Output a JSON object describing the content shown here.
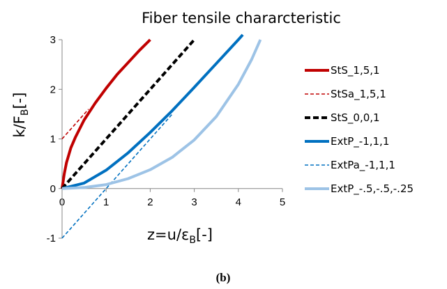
{
  "chart_data": {
    "type": "line",
    "title": "Fiber tensile chararcteristic",
    "xlabel": {
      "main": "z=u/",
      "symbol": "ε",
      "sub": "B",
      "tail": "[-]"
    },
    "ylabel": {
      "main": "k/F",
      "sub": "B",
      "tail": "[-]"
    },
    "xlim": [
      0,
      5
    ],
    "ylim": [
      -1,
      3
    ],
    "xticks": [
      0,
      1,
      2,
      3,
      4,
      5
    ],
    "yticks": [
      -1,
      0,
      1,
      2,
      3
    ],
    "grid": false,
    "legend_position": "right",
    "series": [
      {
        "name": "StS_1,5,1",
        "color": "#c00000",
        "style": "solid",
        "width": "thick",
        "x": [
          0,
          0.05,
          0.1,
          0.2,
          0.3,
          0.5,
          0.75,
          1.0,
          1.25,
          1.5,
          1.75,
          2.0
        ],
        "y": [
          0,
          0.3,
          0.52,
          0.82,
          1.03,
          1.38,
          1.72,
          2.02,
          2.3,
          2.54,
          2.78,
          3.0
        ]
      },
      {
        "name": "StSa_1,5,1",
        "color": "#c00000",
        "style": "dashed",
        "width": "thin",
        "x": [
          0,
          0.6
        ],
        "y": [
          1.0,
          1.6
        ]
      },
      {
        "name": "StS_0,0,1",
        "color": "#000000",
        "style": "dashed",
        "width": "thick",
        "x": [
          0,
          3.0
        ],
        "y": [
          0,
          3.0
        ]
      },
      {
        "name": "ExtP_-1,1,1",
        "color": "#0070c0",
        "style": "solid",
        "width": "thick",
        "x": [
          0,
          0.5,
          1.0,
          1.5,
          2.0,
          2.5,
          3.0,
          3.5,
          4.0,
          4.1
        ],
        "y": [
          0,
          0.11,
          0.37,
          0.72,
          1.13,
          1.57,
          2.04,
          2.52,
          3.0,
          3.1
        ]
      },
      {
        "name": "ExtPa_-1,1,1",
        "color": "#0070c0",
        "style": "dashed",
        "width": "thin",
        "x": [
          0,
          1.0,
          2.5
        ],
        "y": [
          -1.0,
          0,
          1.5
        ]
      },
      {
        "name": "ExtP_-.5,-.5,-.25",
        "color": "#9dc3e6",
        "style": "solid",
        "width": "thick",
        "x": [
          0,
          0.5,
          1.0,
          1.5,
          2.0,
          2.5,
          3.0,
          3.5,
          4.0,
          4.3,
          4.5
        ],
        "y": [
          0,
          0.02,
          0.08,
          0.2,
          0.38,
          0.63,
          0.98,
          1.45,
          2.1,
          2.6,
          3.0
        ]
      }
    ]
  },
  "caption": "(b)"
}
